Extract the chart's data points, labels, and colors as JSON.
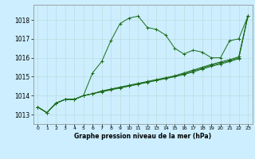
{
  "title": "Graphe pression niveau de la mer (hPa)",
  "bg_color": "#cceeff",
  "grid_color": "#bbdddd",
  "line_color": "#1a6b1a",
  "ylim": [
    1012.5,
    1018.8
  ],
  "xlim": [
    -0.5,
    23.5
  ],
  "yticks": [
    1013,
    1014,
    1015,
    1016,
    1017,
    1018
  ],
  "xticks": [
    0,
    1,
    2,
    3,
    4,
    5,
    6,
    7,
    8,
    9,
    10,
    11,
    12,
    13,
    14,
    15,
    16,
    17,
    18,
    19,
    20,
    21,
    22,
    23
  ],
  "series": [
    [
      1013.4,
      1013.1,
      1013.6,
      1013.8,
      1013.8,
      1014.0,
      1015.2,
      1015.8,
      1016.9,
      1017.8,
      1018.1,
      1018.2,
      1017.6,
      1017.5,
      1017.2,
      1016.5,
      1016.2,
      1016.4,
      1016.3,
      1016.0,
      1016.0,
      1016.9,
      1017.0,
      1018.2
    ],
    [
      1013.4,
      1013.1,
      1013.6,
      1013.8,
      1013.8,
      1014.0,
      1014.1,
      1014.25,
      1014.35,
      1014.45,
      1014.55,
      1014.65,
      1014.75,
      1014.85,
      1014.95,
      1015.05,
      1015.2,
      1015.35,
      1015.5,
      1015.65,
      1015.78,
      1015.9,
      1016.05,
      1018.2
    ],
    [
      1013.4,
      1013.1,
      1013.6,
      1013.8,
      1013.8,
      1014.0,
      1014.1,
      1014.22,
      1014.33,
      1014.43,
      1014.52,
      1014.62,
      1014.72,
      1014.82,
      1014.92,
      1015.02,
      1015.15,
      1015.3,
      1015.45,
      1015.6,
      1015.72,
      1015.85,
      1016.0,
      1018.2
    ],
    [
      1013.4,
      1013.1,
      1013.6,
      1013.8,
      1013.8,
      1014.0,
      1014.1,
      1014.2,
      1014.3,
      1014.4,
      1014.5,
      1014.6,
      1014.7,
      1014.8,
      1014.9,
      1015.0,
      1015.12,
      1015.25,
      1015.4,
      1015.55,
      1015.67,
      1015.8,
      1015.95,
      1018.2
    ]
  ]
}
